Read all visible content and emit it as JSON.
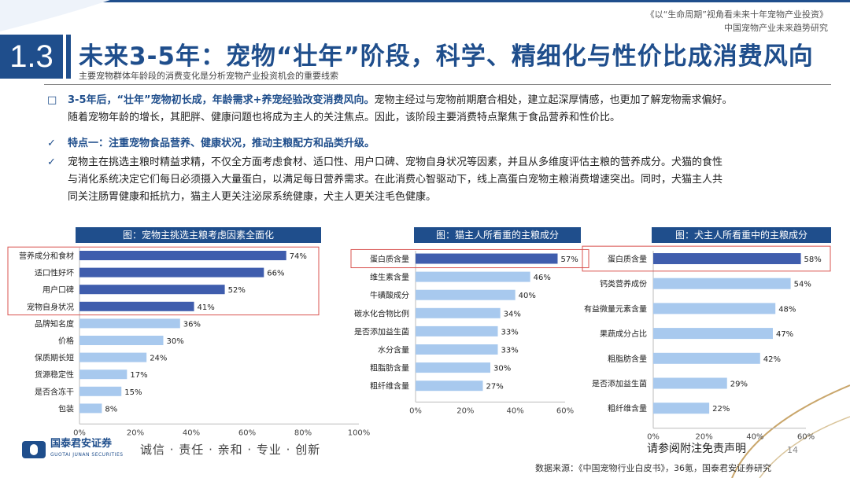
{
  "header": {
    "report_title": "《以“生命周期”视角看未来十年宠物产业投资》",
    "report_subtitle": "中国宠物产业未来趋势研究"
  },
  "section": {
    "number": "1.3",
    "title": "未来3-5年：宠物“壮年”阶段，科学、精细化与性价比成消费风向",
    "subtitle": "主要宠物群体年龄段的消费变化是分析宠物产业投资机会的重要线索"
  },
  "body": {
    "p1_marker": "□",
    "p1_highlight": "3-5年后，“壮年”宠物初长成，年龄需求+养宠经验改变消费风向。",
    "p1_text": "宠物主经过与宠物前期磨合相处，建立起深厚情感，也更加了解宠物需求偏好。",
    "p1_line2": "随着宠物年龄的增长，其肥胖、健康问题也将成为主人的关注焦点。因此，该阶段主要消费特点聚焦于食品营养和性价比。",
    "p2_marker": "✓",
    "p2_highlight": "特点一：注重宠物食品营养、健康状况，推动主粮配方和品类升级。",
    "p3_marker": "✓",
    "p3_line1": "宠物主在挑选主粮时精益求精，不仅全方面考虑食材、适口性、用户口碑、宠物自身状况等因素，并且从多维度评估主粮的营养成分。犬猫的食性",
    "p3_line2": "与消化系统决定它们每日必须摄入大量蛋白，以满足每日营养需求。在此消费心智驱动下，线上高蛋白宠物主粮消费增速突出。同时，犬猫主人共",
    "p3_line3": "同关注肠胃健康和抵抗力，猫主人更关注泌尿系统健康，犬主人更关注毛色健康。"
  },
  "chart_data": [
    {
      "type": "bar",
      "orientation": "horizontal",
      "title": "图：宠物主挑选主粮考虑因素全面化",
      "categories": [
        "营养成分和食材",
        "适口性好坏",
        "用户口碑",
        "宠物自身状况",
        "品牌知名度",
        "价格",
        "保质期长短",
        "货源稳定性",
        "是否含冻干",
        "包装"
      ],
      "values": [
        74,
        66,
        52,
        41,
        36,
        30,
        24,
        17,
        15,
        8
      ],
      "value_labels": [
        "74%",
        "66%",
        "52%",
        "41%",
        "36%",
        "30%",
        "24%",
        "17%",
        "15%",
        "8%"
      ],
      "highlighted_count": 4,
      "xlim": [
        0,
        100
      ],
      "ticks": [
        "0%",
        "20%",
        "40%",
        "60%",
        "80%",
        "100%"
      ],
      "colors": {
        "highlight": "#3f5dad",
        "normal": "#a8c9ee"
      }
    },
    {
      "type": "bar",
      "orientation": "horizontal",
      "title": "图：猫主人所看重的主粮成分",
      "categories": [
        "蛋白质含量",
        "维生素含量",
        "牛磺酸成分",
        "碳水化合物比例",
        "是否添加益生菌",
        "水分含量",
        "粗脂肪含量",
        "粗纤维含量"
      ],
      "values": [
        57,
        46,
        40,
        34,
        33,
        33,
        30,
        27
      ],
      "value_labels": [
        "57%",
        "46%",
        "40%",
        "34%",
        "33%",
        "33%",
        "30%",
        "27%"
      ],
      "highlighted_count": 1,
      "xlim": [
        0,
        60
      ],
      "ticks": [
        "0%",
        "20%",
        "40%",
        "60%"
      ],
      "colors": {
        "highlight": "#3f5dad",
        "normal": "#a8c9ee"
      }
    },
    {
      "type": "bar",
      "orientation": "horizontal",
      "title": "图：犬主人所看重中的主粮成分",
      "categories": [
        "蛋白质含量",
        "钙类营养成份",
        "有益微量元素含量",
        "果蔬成分占比",
        "粗脂肪含量",
        "是否添加益生菌",
        "粗纤维含量"
      ],
      "values": [
        58,
        54,
        48,
        47,
        42,
        29,
        22
      ],
      "value_labels": [
        "58%",
        "54%",
        "48%",
        "47%",
        "42%",
        "29%",
        "22%"
      ],
      "highlighted_count": 1,
      "xlim": [
        0,
        60
      ],
      "ticks": [
        "0%",
        "20%",
        "40%",
        "60%"
      ],
      "colors": {
        "highlight": "#3f5dad",
        "normal": "#a8c9ee"
      }
    }
  ],
  "footer": {
    "logo_cn": "国泰君安证券",
    "logo_en": "GUOTAI JUNAN SECURITIES",
    "slogan": "诚信 · 责任 · 亲和 · 专业 · 创新",
    "disclaimer": "请参阅附注免责声明",
    "page_number": "14",
    "source": "数据来源：《中国宠物行业白皮书》，36氪，国泰君安证券研究"
  }
}
